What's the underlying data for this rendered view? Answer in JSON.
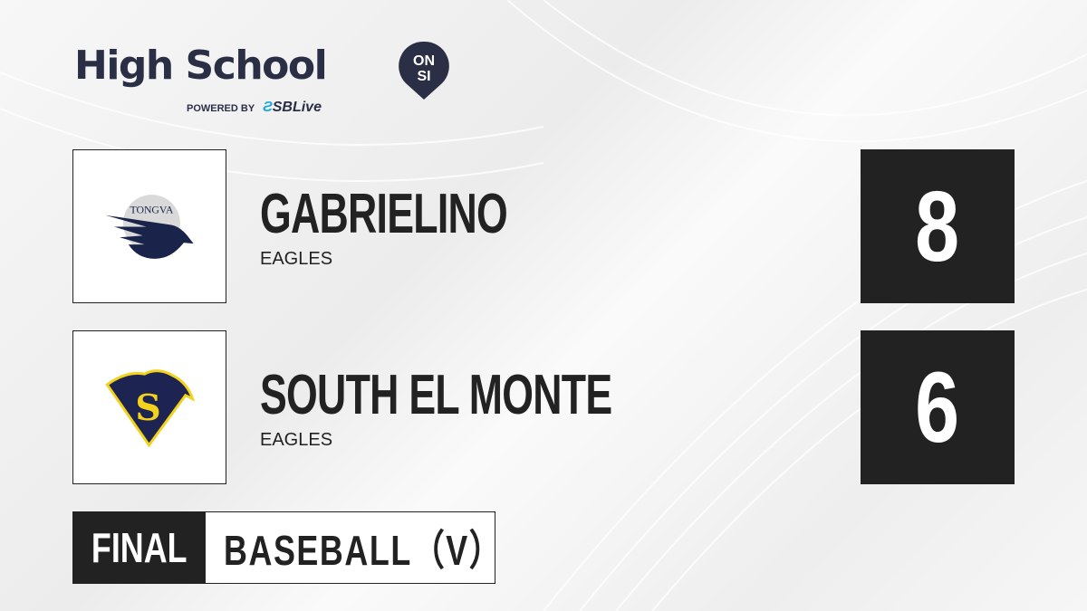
{
  "brand": {
    "title": "High School",
    "badge_top": "ON",
    "badge_bottom": "SI",
    "powered_by": "POWERED BY",
    "partner": "SBLive"
  },
  "teams": [
    {
      "name": "GABRIELINO",
      "mascot": "EAGLES",
      "score": "8",
      "logo_text": "TONGVA",
      "logo_colors": [
        "#1a2349",
        "#d9d9d9"
      ]
    },
    {
      "name": "SOUTH EL MONTE",
      "mascot": "EAGLES",
      "score": "6",
      "logo_colors": [
        "#1d2452",
        "#f2d21b"
      ]
    }
  ],
  "status": {
    "label": "FINAL",
    "sport": "BASEBALL（V）"
  },
  "colors": {
    "dark": "#222222",
    "brand": "#2b2f45",
    "accent": "#1fa8e0"
  }
}
